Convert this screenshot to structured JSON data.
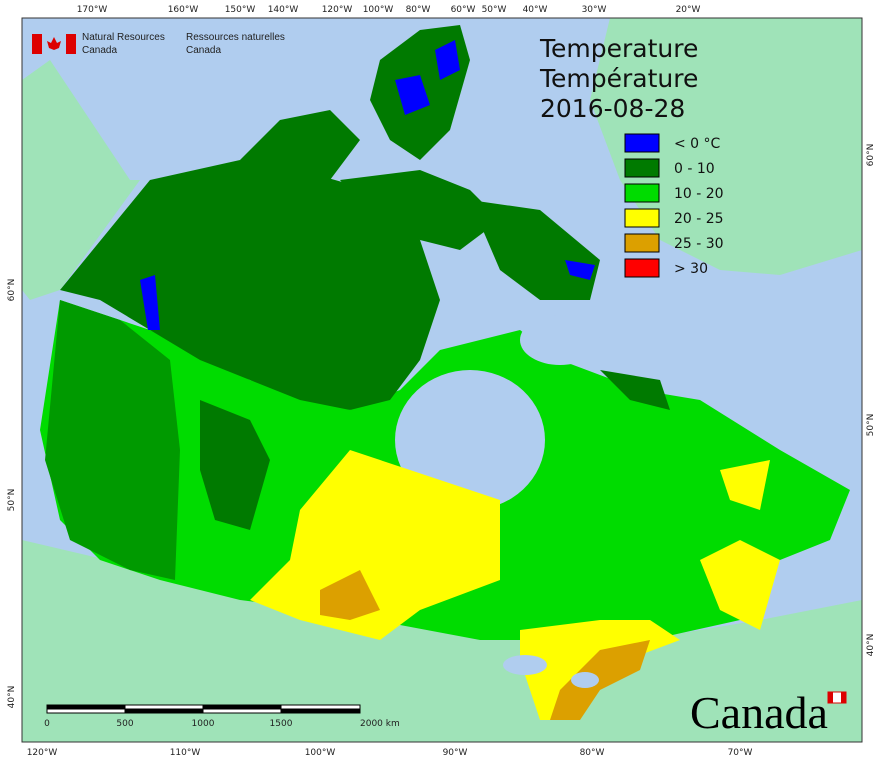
{
  "header": {
    "agency_en": [
      "Natural Resources",
      "Canada"
    ],
    "agency_fr": [
      "Ressources naturelles",
      "Canada"
    ]
  },
  "title": {
    "lines": [
      "Temperature",
      "Température"
    ],
    "date": "2016-08-28"
  },
  "legend": [
    {
      "label": "< 0 °C",
      "color": "#0000ff"
    },
    {
      "label": "0 - 10",
      "color": "#007a00"
    },
    {
      "label": "10 - 20",
      "color": "#00dc00"
    },
    {
      "label": "20 - 25",
      "color": "#ffff00"
    },
    {
      "label": "25 - 30",
      "color": "#dca000"
    },
    {
      "label": "> 30",
      "color": "#ff0000"
    }
  ],
  "graticule": {
    "top": [
      "170°W",
      "160°W",
      "150°W",
      "140°W",
      "120°W",
      "100°W",
      "80°W",
      "60°W",
      "50°W",
      "40°W",
      "30°W",
      "20°W"
    ],
    "bottom": [
      "120°W",
      "110°W",
      "100°W",
      "90°W",
      "80°W",
      "70°W"
    ],
    "left": [
      "60°N",
      "50°N",
      "40°N"
    ],
    "right": [
      "60°N",
      "50°N",
      "40°N"
    ]
  },
  "scale_bar": {
    "labels": [
      "0",
      "500",
      "1000",
      "1500",
      "2000 km"
    ]
  },
  "wordmark": "Canada"
}
